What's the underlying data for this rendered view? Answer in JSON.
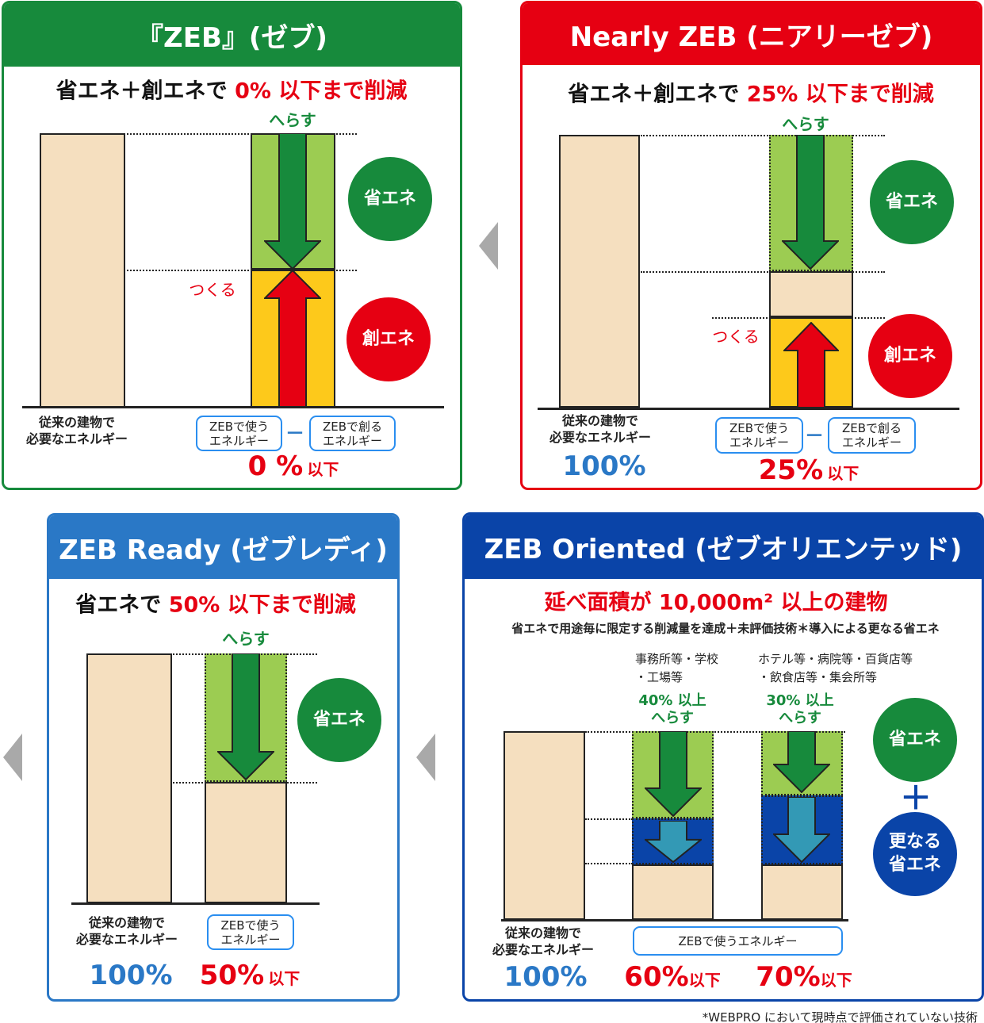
{
  "colors": {
    "zeb": "#178a3c",
    "nearly": "#e60012",
    "ready": "#2a78c6",
    "oriented": "#0a44a8",
    "building": "#f5dfbf",
    "save_fill": "#9ccc52",
    "create_fill": "#fdc91b",
    "extra_fill": "#0a44a8"
  },
  "common": {
    "conventional": "従来の建物で",
    "conventional2": "必要なエネルギー",
    "use": "ZEBで使う",
    "create": "ZEBで創る",
    "energy": "エネルギー",
    "minus": "－",
    "reduce": "へらす",
    "make": "つくる",
    "save": "省エネ",
    "gen": "創エネ",
    "below": "以下",
    "hundred": "100%"
  },
  "zeb": {
    "title": "『ZEB』(ゼブ)",
    "sub_black": "省エネ＋創エネで ",
    "sub_red": "0% 以下まで削減",
    "result": "0 %"
  },
  "nearly": {
    "title": "Nearly ZEB (ニアリーゼブ)",
    "sub_black": "省エネ＋創エネで ",
    "sub_red": "25% 以下まで削減",
    "result": "25%"
  },
  "ready": {
    "title": "ZEB Ready (ゼブレディ)",
    "sub_black": "省エネで ",
    "sub_red": "50% 以下まで削減",
    "result": "50%"
  },
  "oriented": {
    "title": "ZEB Oriented (ゼブオリエンテッド)",
    "headline": "延べ面積が 10,000m² 以上の建物",
    "sub": "省エネで用途毎に限定する削減量を達成＋未評価技術＊導入による更なる省エネ",
    "cat1a": "事務所等・学校",
    "cat1b": "・工場等",
    "cat2a": "ホテル等・病院等・百貨店等",
    "cat2b": "・飲食店等・集会所等",
    "red1": "40% 以上",
    "red2": "30% 以上",
    "plus": "＋",
    "extra1": "更なる",
    "extra2": "省エネ",
    "use_energy": "ZEBで使うエネルギー",
    "result1": "60%",
    "result2": "70%"
  },
  "footnote": "*WEBPRO において現時点で評価されていない技術"
}
